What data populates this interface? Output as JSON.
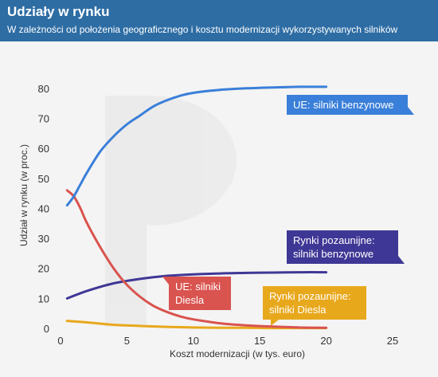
{
  "header": {
    "title": "Udziały w rynku",
    "subtitle": "W zależności od położenia geograficznego i kosztu modernizacji wykorzystywanych silników"
  },
  "colors": {
    "header_bg": "#2e6da4",
    "plot_bg": "#f4f4f4",
    "ue_benzyna": "#3a7fd9",
    "ue_diesel": "#d9534f",
    "poza_benzyna": "#3f3795",
    "poza_diesel": "#e8a81c"
  },
  "chart_data": {
    "type": "line",
    "xlabel": "Koszt modernizacji (w tys. euro)",
    "ylabel": "Udział w rynku (w proc.)",
    "xlim": [
      0,
      25
    ],
    "ylim": [
      0,
      85
    ],
    "xticks": [
      0,
      5,
      10,
      15,
      20,
      25
    ],
    "yticks": [
      0,
      10,
      20,
      30,
      40,
      50,
      60,
      70,
      80
    ],
    "grid": false,
    "legend": "inline labels",
    "series": [
      {
        "name": "UE: silniki benzynowe",
        "color": "#3a7fd9",
        "x": [
          0.5,
          1,
          1.5,
          2,
          3,
          4,
          5,
          6,
          7,
          8,
          9,
          10,
          12,
          14,
          16,
          18,
          20
        ],
        "y": [
          41,
          44,
          48,
          52,
          59,
          64,
          68,
          71,
          74,
          76,
          77.5,
          78.5,
          79.5,
          80,
          80.3,
          80.5,
          80.5
        ]
      },
      {
        "name": "UE: silniki Diesla",
        "color": "#d9534f",
        "x": [
          0.5,
          1,
          1.5,
          2,
          3,
          4,
          5,
          6,
          7,
          8,
          9,
          10,
          12,
          14,
          16,
          18,
          20
        ],
        "y": [
          46,
          44,
          40,
          35,
          27,
          20,
          14.5,
          10.5,
          7.5,
          5.5,
          4,
          3,
          1.7,
          1,
          0.6,
          0.3,
          0.2
        ]
      },
      {
        "name": "Rynki pozaunijne: silniki benzynowe",
        "color": "#3f3795",
        "x": [
          0.5,
          2,
          4,
          6,
          8,
          10,
          12,
          14,
          16,
          18,
          20
        ],
        "y": [
          10,
          12.5,
          15,
          16.5,
          17.5,
          18,
          18.3,
          18.5,
          18.6,
          18.7,
          18.7
        ]
      },
      {
        "name": "Rynki pozaunijne: silniki Diesla",
        "color": "#e8a81c",
        "x": [
          0.5,
          2,
          4,
          6,
          8,
          10,
          12,
          14,
          16,
          18,
          20
        ],
        "y": [
          2.5,
          2.0,
          1.2,
          0.8,
          0.5,
          0.3,
          0.2,
          0.2,
          0.1,
          0.1,
          0.1
        ]
      }
    ],
    "annotations": [
      {
        "series": 0,
        "lines": [
          "UE: silniki benzynowe"
        ]
      },
      {
        "series": 2,
        "lines": [
          "Rynki pozaunijne:",
          "silniki benzynowe"
        ]
      },
      {
        "series": 1,
        "lines": [
          "UE: silniki",
          "Diesla"
        ]
      },
      {
        "series": 3,
        "lines": [
          "Rynki pozaunijne:",
          "silniki Diesla"
        ]
      }
    ]
  }
}
